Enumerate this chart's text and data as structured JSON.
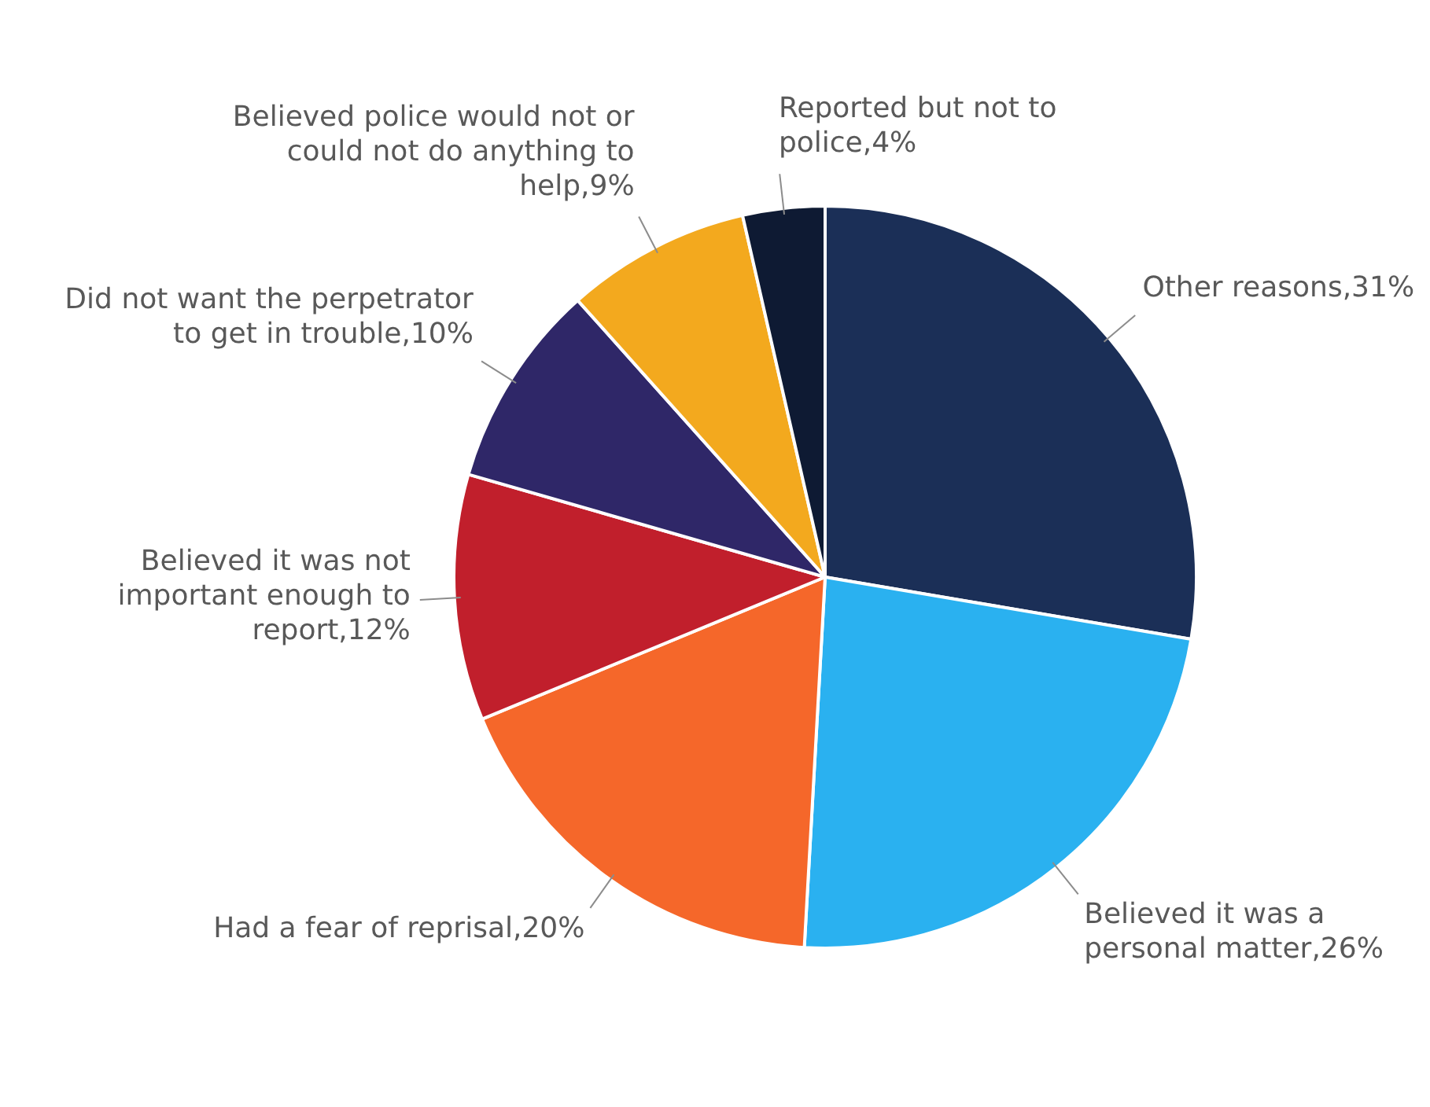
{
  "chart_data": {
    "type": "pie",
    "categories": [
      "Other reasons",
      "Believed it was a personal matter",
      "Had a fear of reprisal",
      "Believed it was not important enough to report",
      "Did not want the perpetrator to get in trouble",
      "Believed police would not or could not do anything to help",
      "Reported but not to police"
    ],
    "values": [
      31,
      26,
      20,
      12,
      10,
      9,
      4
    ],
    "value_labels": [
      "31%",
      "26%",
      "20%",
      "12%",
      "10%",
      "9%",
      "4%"
    ],
    "colors": [
      "#1b2f57",
      "#2ab1f0",
      "#f5672a",
      "#c11f2c",
      "#2f2768",
      "#f3a91e",
      "#0e1a33"
    ],
    "legend": false
  }
}
